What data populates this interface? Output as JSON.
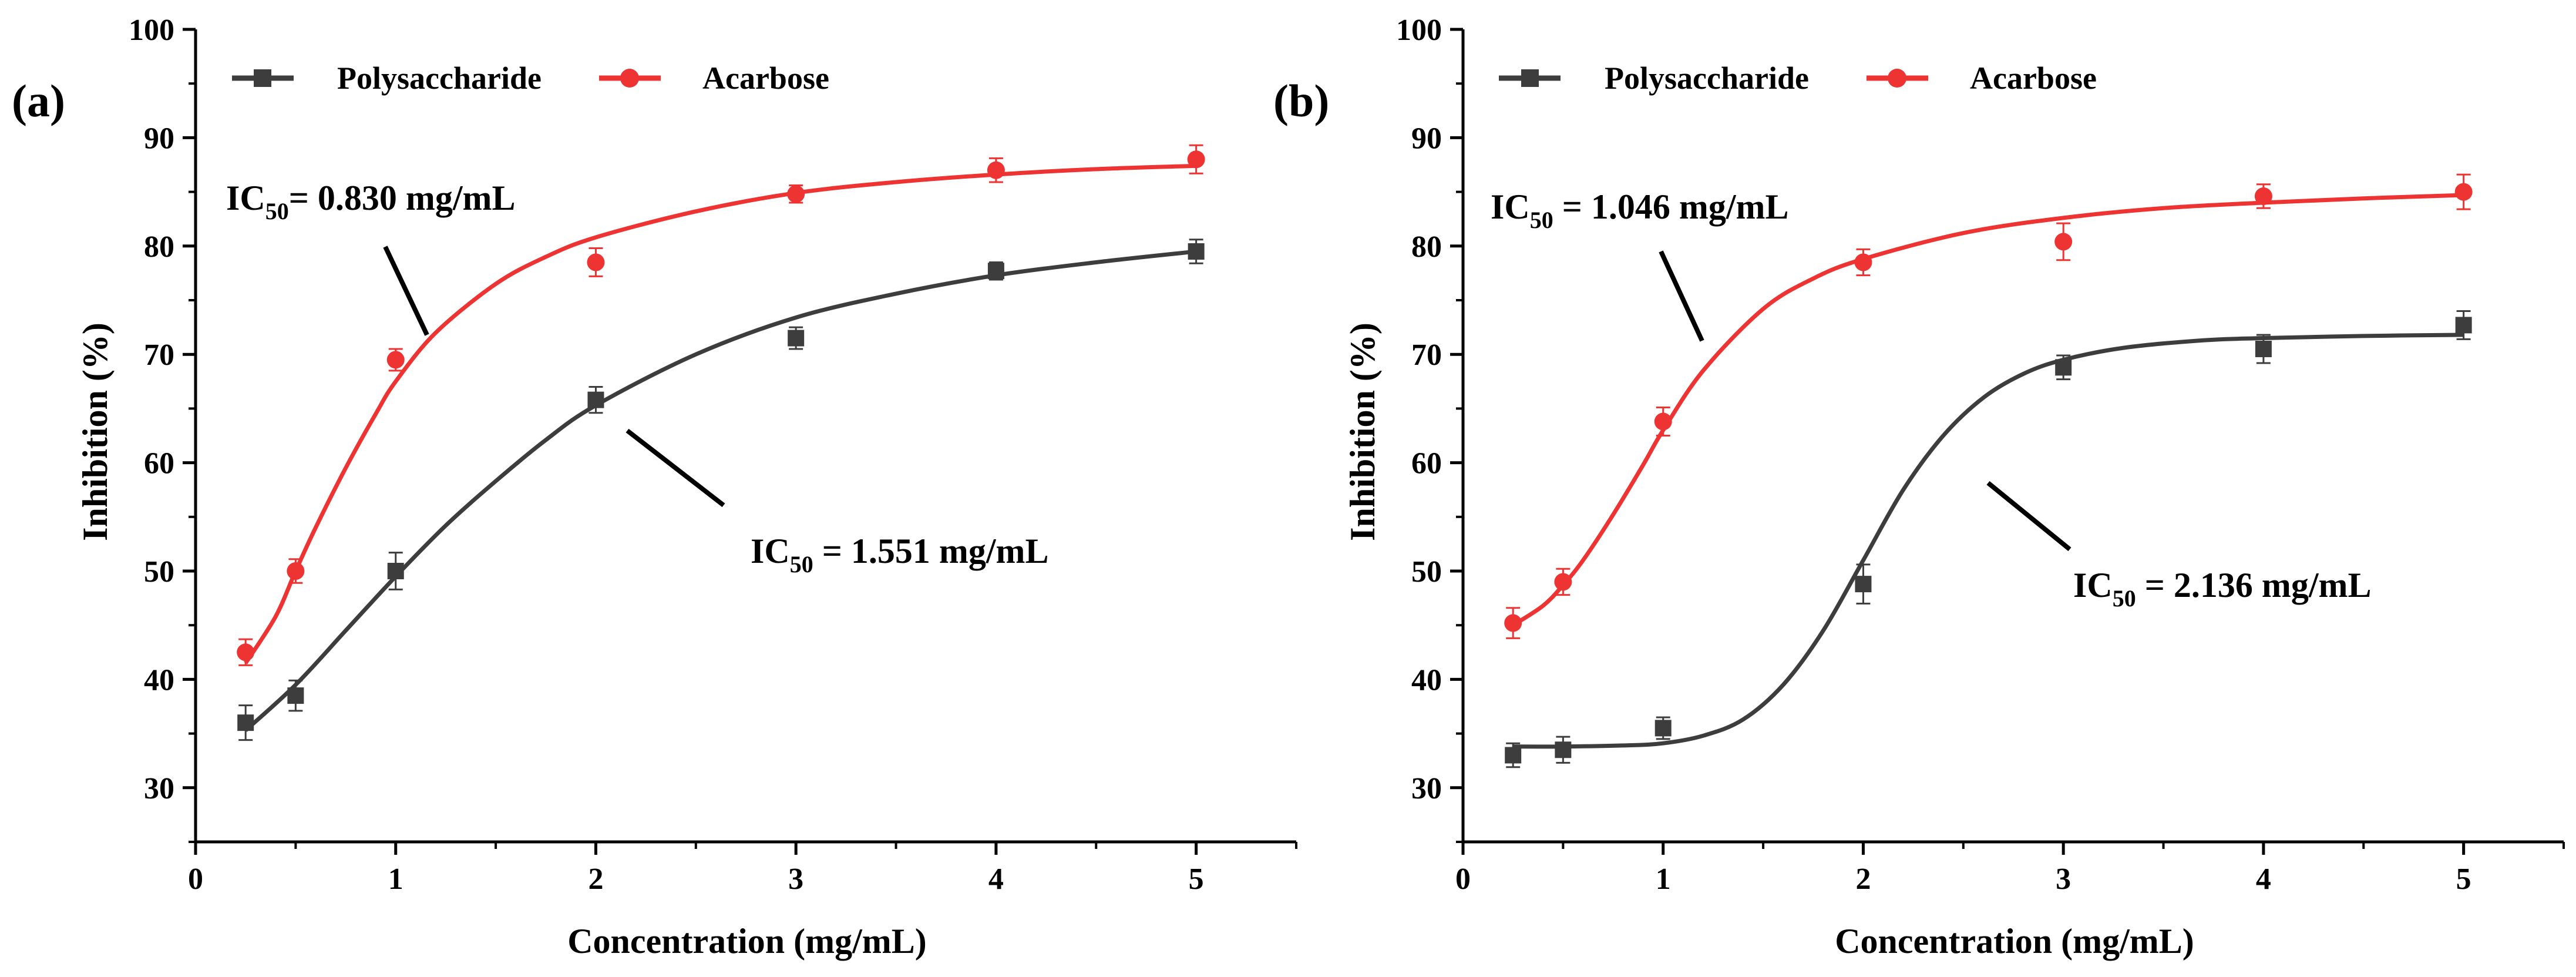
{
  "colors": {
    "polysaccharide": "#3d3d3d",
    "acarbose": "#ee3333",
    "axis": "#000000"
  },
  "chart_data": [
    {
      "type": "scatter",
      "panel_label": "(a)",
      "xlabel": "Concentration (mg/mL)",
      "ylabel": "Inhibition (%)",
      "xlim": [
        0,
        5.5
      ],
      "ylim": [
        25,
        100
      ],
      "xticks": [
        0,
        1,
        2,
        3,
        4,
        5
      ],
      "yticks": [
        30,
        40,
        50,
        60,
        70,
        80,
        90,
        100
      ],
      "legend": [
        "Polysaccharide",
        "Acarbose"
      ],
      "series": [
        {
          "name": "Polysaccharide",
          "marker": "square",
          "x": [
            0.25,
            0.5,
            1,
            2,
            3,
            4,
            5
          ],
          "y": [
            36.0,
            38.5,
            50.0,
            65.8,
            71.5,
            77.7,
            79.5
          ],
          "err": [
            1.6,
            1.4,
            1.7,
            1.2,
            1.0,
            0.8,
            1.1
          ],
          "fit_x": [
            0.25,
            0.5,
            0.75,
            1.0,
            1.25,
            1.5,
            1.75,
            2.0,
            2.5,
            3.0,
            3.5,
            4.0,
            4.5,
            5.0
          ],
          "fit_y": [
            35.3,
            39.5,
            44.5,
            49.5,
            54.2,
            58.3,
            62.1,
            65.3,
            70.0,
            73.4,
            75.6,
            77.3,
            78.5,
            79.5
          ]
        },
        {
          "name": "Acarbose",
          "marker": "circle",
          "x": [
            0.25,
            0.5,
            1,
            2,
            3,
            4,
            5
          ],
          "y": [
            42.5,
            50.0,
            69.5,
            78.5,
            84.8,
            87.0,
            88.0
          ],
          "err": [
            1.2,
            1.1,
            1.0,
            1.3,
            0.8,
            1.1,
            1.3
          ],
          "fit_x": [
            0.25,
            0.4,
            0.5,
            0.6,
            0.75,
            0.9,
            1.0,
            1.2,
            1.5,
            1.75,
            2.0,
            2.5,
            3.0,
            3.5,
            4.0,
            4.5,
            5.0
          ],
          "fit_y": [
            41.5,
            45.8,
            50.0,
            54.0,
            59.5,
            64.5,
            67.5,
            72.0,
            76.5,
            79.0,
            80.8,
            83.2,
            84.9,
            85.9,
            86.6,
            87.1,
            87.4
          ]
        }
      ],
      "annotations": [
        {
          "main": "IC",
          "sub": "50",
          "rest": "= 0.830 mg/mL"
        },
        {
          "main": "IC",
          "sub": "50",
          "rest": " = 1.551 mg/mL"
        }
      ]
    },
    {
      "type": "scatter",
      "panel_label": "(b)",
      "xlabel": "Concentration (mg/mL)",
      "ylabel": "Inhibition (%)",
      "xlim": [
        0,
        5.5
      ],
      "ylim": [
        25,
        100
      ],
      "xticks": [
        0,
        1,
        2,
        3,
        4,
        5
      ],
      "yticks": [
        30,
        40,
        50,
        60,
        70,
        80,
        90,
        100
      ],
      "legend": [
        "Polysaccharide",
        "Acarbose"
      ],
      "series": [
        {
          "name": "Polysaccharide",
          "marker": "square",
          "x": [
            0.25,
            0.5,
            1,
            2,
            3,
            4,
            5
          ],
          "y": [
            33.0,
            33.5,
            35.5,
            48.8,
            68.8,
            70.5,
            72.7
          ],
          "err": [
            1.1,
            1.2,
            1.0,
            1.8,
            1.1,
            1.3,
            1.3
          ],
          "fit_x": [
            0.25,
            0.5,
            0.8,
            1.0,
            1.2,
            1.4,
            1.6,
            1.8,
            2.0,
            2.2,
            2.4,
            2.6,
            2.8,
            3.0,
            3.3,
            3.7,
            4.0,
            4.5,
            5.0
          ],
          "fit_y": [
            33.8,
            33.8,
            33.9,
            34.1,
            34.8,
            36.3,
            39.5,
            44.5,
            51.0,
            57.5,
            62.5,
            66.0,
            68.2,
            69.5,
            70.6,
            71.3,
            71.5,
            71.7,
            71.8
          ]
        },
        {
          "name": "Acarbose",
          "marker": "circle",
          "x": [
            0.25,
            0.5,
            1,
            2,
            3,
            4,
            5
          ],
          "y": [
            45.2,
            49.0,
            63.8,
            78.5,
            80.4,
            84.6,
            85.0
          ],
          "err": [
            1.4,
            1.2,
            1.3,
            1.2,
            1.7,
            1.1,
            1.6
          ],
          "fit_x": [
            0.25,
            0.4,
            0.5,
            0.6,
            0.75,
            0.9,
            1.0,
            1.2,
            1.5,
            1.75,
            2.0,
            2.5,
            3.0,
            3.5,
            4.0,
            4.5,
            5.0
          ],
          "fit_y": [
            45.0,
            46.8,
            48.7,
            51.0,
            55.2,
            59.8,
            63.0,
            68.5,
            74.2,
            77.0,
            78.8,
            81.2,
            82.6,
            83.5,
            84.0,
            84.4,
            84.7
          ]
        }
      ],
      "annotations": [
        {
          "main": "IC",
          "sub": "50",
          "rest": " = 1.046 mg/mL"
        },
        {
          "main": "IC",
          "sub": "50",
          "rest": " = 2.136 mg/mL"
        }
      ]
    }
  ]
}
